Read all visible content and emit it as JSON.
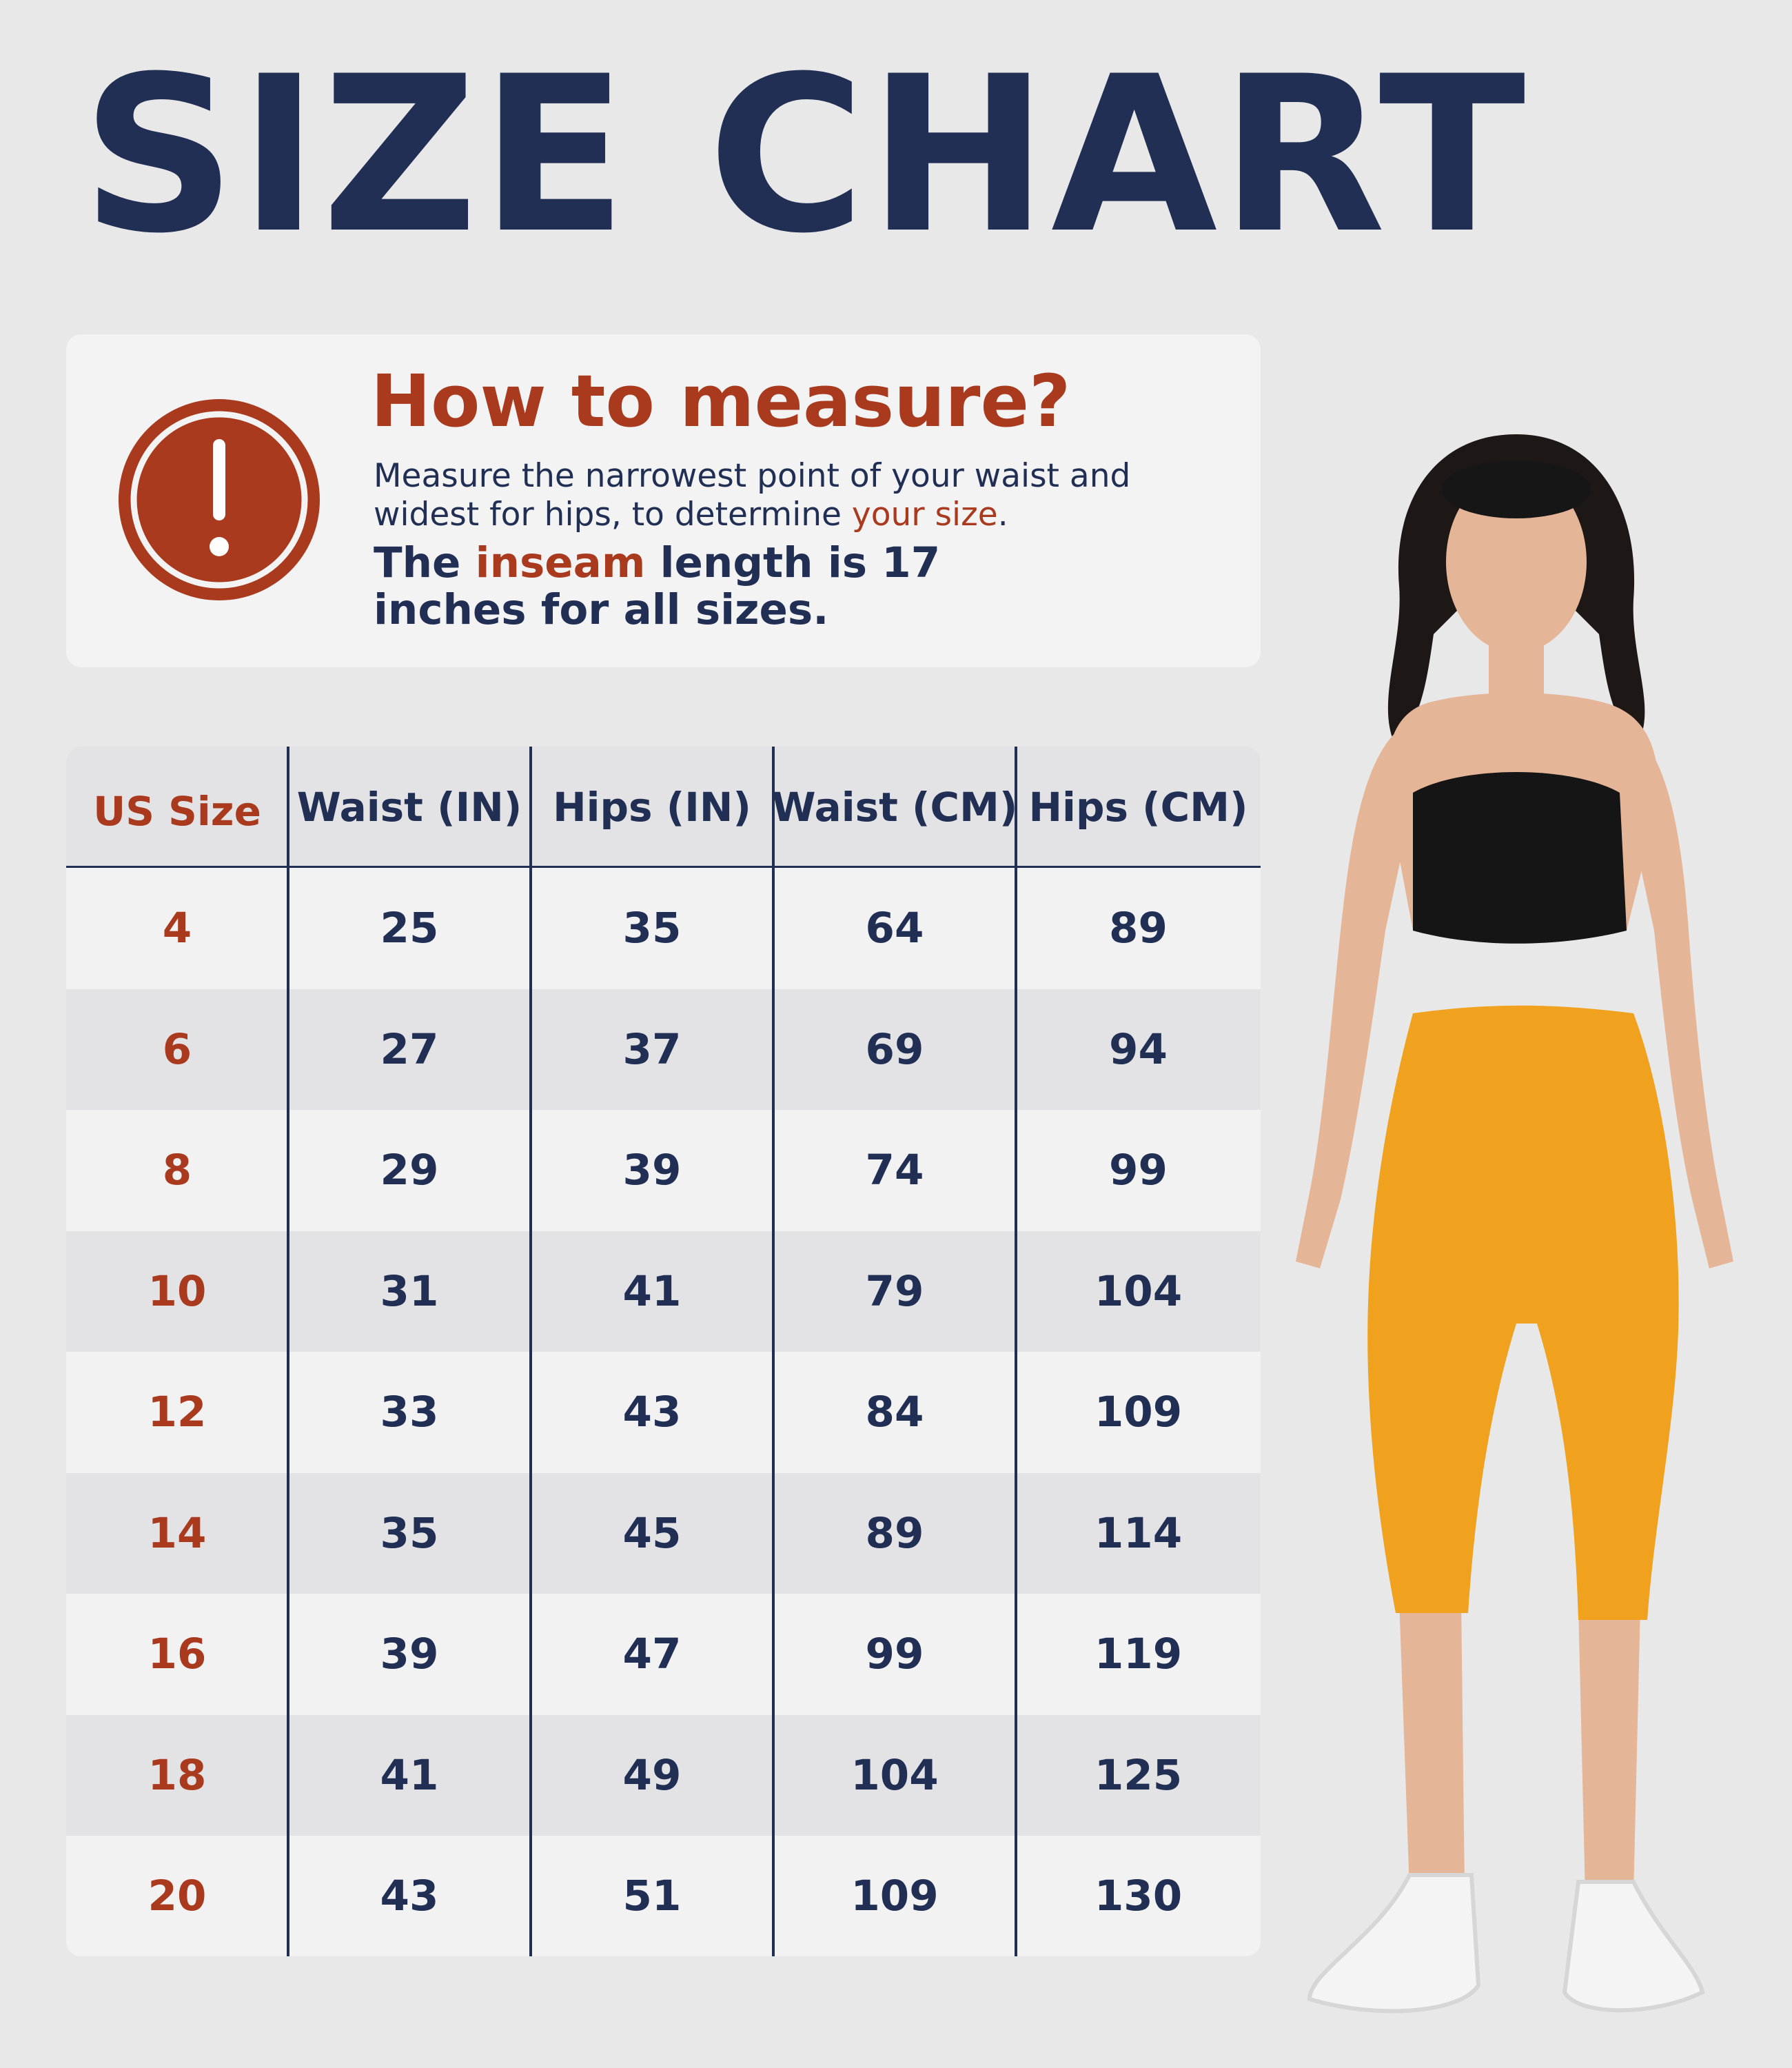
{
  "title": "SIZE CHART",
  "measure": {
    "heading": "How to measure?",
    "instructions_pre": "Measure the narrowest point of your waist and widest for hips, to determine ",
    "instructions_highlight": "your size",
    "instructions_post": ".",
    "inseam_pre": "The ",
    "inseam_highlight": "inseam",
    "inseam_post": " length is 17 inches for all sizes.",
    "icon": "exclamation-circle-icon"
  },
  "table": {
    "headers": [
      "US Size",
      "Waist (IN)",
      "Hips (IN)",
      "Waist (CM)",
      "Hips (CM)"
    ],
    "rows": [
      [
        "4",
        "25",
        "35",
        "64",
        "89"
      ],
      [
        "6",
        "27",
        "37",
        "69",
        "94"
      ],
      [
        "8",
        "29",
        "39",
        "74",
        "99"
      ],
      [
        "10",
        "31",
        "41",
        "79",
        "104"
      ],
      [
        "12",
        "33",
        "43",
        "84",
        "109"
      ],
      [
        "14",
        "35",
        "45",
        "89",
        "114"
      ],
      [
        "16",
        "39",
        "47",
        "99",
        "119"
      ],
      [
        "18",
        "41",
        "49",
        "104",
        "125"
      ],
      [
        "20",
        "43",
        "51",
        "109",
        "130"
      ]
    ]
  },
  "colors": {
    "navy": "#222f54",
    "rust": "#a93a1e",
    "background": "#e8e8e9",
    "leggings": "#f0a11d"
  }
}
